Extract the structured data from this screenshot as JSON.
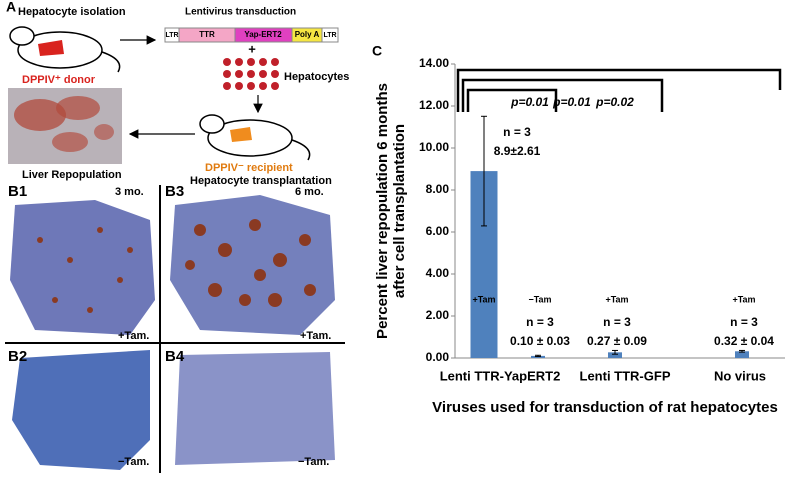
{
  "panel_a": {
    "label": "A",
    "isolation": "Hepatocyte isolation",
    "donor": "DPPIV⁺ donor",
    "transduction": "Lentivirus transduction",
    "construct": [
      "LTR",
      "TTR",
      "Yap-ERT2",
      "Poly A",
      "LTR"
    ],
    "plus": "+",
    "hepatocytes": "Hepatocytes",
    "recipient": "DPPIV⁻ recipient",
    "transplantation": "Hepatocyte transplantation",
    "repopulation": "Liver Repopulation"
  },
  "panel_b": {
    "panels": [
      {
        "label": "B1",
        "time": "3 mo.",
        "treatment": "+Tam."
      },
      {
        "label": "B3",
        "time": "6 mo.",
        "treatment": "+Tam."
      },
      {
        "label": "B2",
        "treatment": "−Tam."
      },
      {
        "label": "B4",
        "treatment": "−Tam."
      }
    ]
  },
  "chart_data": {
    "type": "bar",
    "panel_label": "C",
    "y_label": [
      "Percent liver repopulation 6 months",
      "after cell transplantation"
    ],
    "x_label": "Viruses used for transduction of rat hepatocytes",
    "groups": [
      "Lenti TTR-YapERT2",
      "Lenti TTR-GFP",
      "No virus"
    ],
    "categories": [
      "+Tam",
      "−Tam",
      "+Tam",
      "+Tam"
    ],
    "values": [
      8.9,
      0.1,
      0.27,
      0.32
    ],
    "errors": [
      2.61,
      0.03,
      0.09,
      0.04
    ],
    "value_labels": [
      "8.9±2.61",
      "0.10 ± 0.03",
      "0.27 ± 0.09",
      "0.32 ± 0.04"
    ],
    "n_labels": [
      "n = 3",
      "n = 3",
      "n = 3",
      "n = 3"
    ],
    "p_values": [
      "p=0.01",
      "p=0.01",
      "p=0.02"
    ],
    "color": "#4f81bd",
    "ylim": [
      0,
      14
    ],
    "yticks": [
      {
        "value": 0,
        "label": "0.00"
      },
      {
        "value": 2,
        "label": "2.00"
      },
      {
        "value": 4,
        "label": "4.00"
      },
      {
        "value": 6,
        "label": "6.00"
      },
      {
        "value": 8,
        "label": "8.00"
      },
      {
        "value": 10,
        "label": "10.00"
      },
      {
        "value": 12,
        "label": "12.00"
      },
      {
        "value": 14,
        "label": "14.00"
      }
    ]
  }
}
